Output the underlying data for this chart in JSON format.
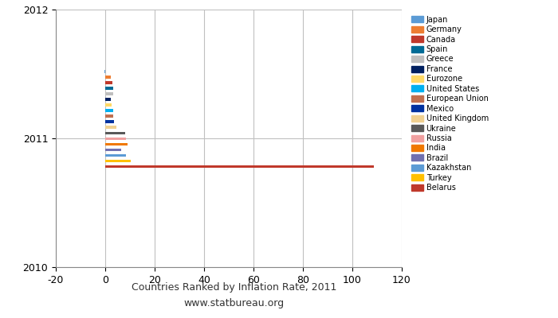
{
  "title": "Countries Ranked by Inflation Rate, 2011",
  "subtitle": "www.statbureau.org",
  "countries": [
    "Japan",
    "Germany",
    "Canada",
    "Spain",
    "Greece",
    "France",
    "Eurozone",
    "United States",
    "European Union",
    "Mexico",
    "United Kingdom",
    "Ukraine",
    "Russia",
    "India",
    "Brazil",
    "Kazakhstan",
    "Turkey",
    "Belarus"
  ],
  "inflation_rates": [
    -0.3,
    2.1,
    2.9,
    3.1,
    3.1,
    2.1,
    2.7,
    3.1,
    3.1,
    3.4,
    4.5,
    8.0,
    8.4,
    8.9,
    6.6,
    8.3,
    10.4,
    108.7
  ],
  "colors": [
    "#5b9bd5",
    "#ed7d31",
    "#c0392b",
    "#006b96",
    "#bfbfbf",
    "#002060",
    "#ffd966",
    "#00b0f0",
    "#c07050",
    "#0032a0",
    "#f0d090",
    "#595959",
    "#f0a0a0",
    "#f07800",
    "#7070b0",
    "#5b9bd5",
    "#ffc000",
    "#c0392b"
  ],
  "y_center": 2011,
  "bar_height": 0.022,
  "xlim": [
    -20,
    120
  ],
  "ylim": [
    2010,
    2012
  ],
  "yticks": [
    2010,
    2011,
    2012
  ],
  "xticks": [
    -20,
    0,
    20,
    40,
    60,
    80,
    100,
    120
  ],
  "grid_color": "#c0c0c0",
  "background_color": "#ffffff"
}
